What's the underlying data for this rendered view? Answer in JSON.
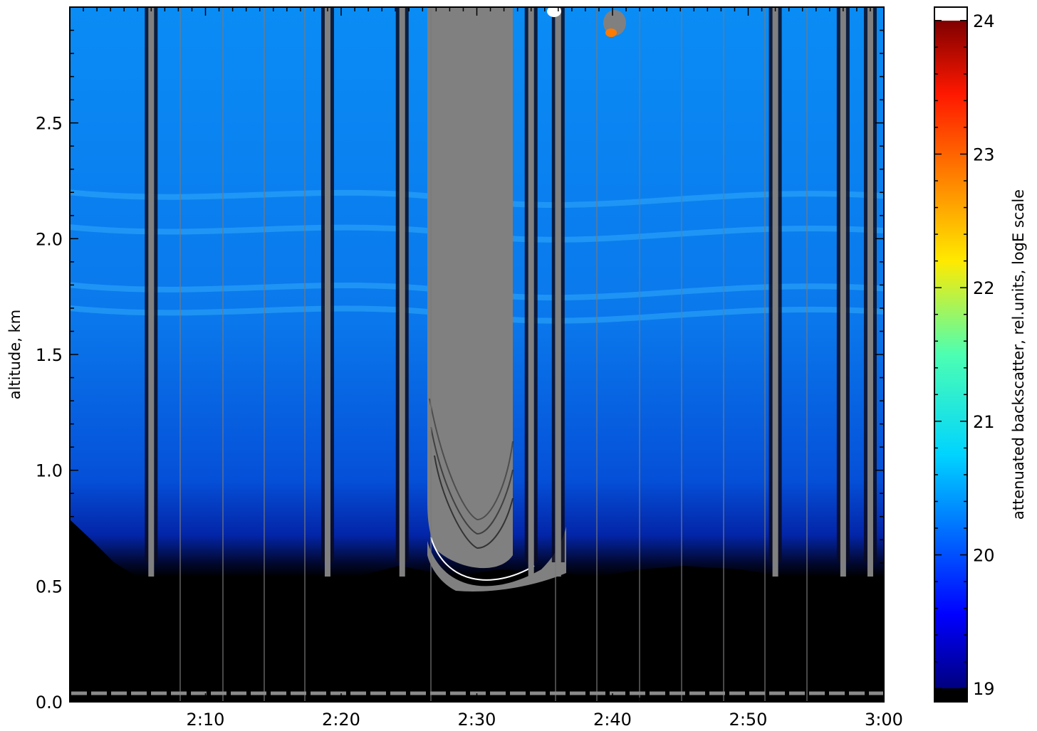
{
  "chart_data": {
    "type": "heatmap",
    "title": "",
    "xlabel": "",
    "ylabel": "altitude, km",
    "x_range": [
      "2:00",
      "3:00"
    ],
    "ylim": [
      0.0,
      3.0
    ],
    "x_ticks": [
      "2:10",
      "2:20",
      "2:30",
      "2:40",
      "2:50",
      "3:00"
    ],
    "y_ticks": [
      "0.0",
      "0.5",
      "1.0",
      "1.5",
      "2.0",
      "2.5"
    ],
    "colorbar": {
      "label": "attenuated backscatter, rel.units, logE scale",
      "range": [
        18.9,
        24.1
      ],
      "ticks": [
        "19",
        "20",
        "21",
        "22",
        "23",
        "24"
      ],
      "colormap": "jet",
      "under_color": "#000000",
      "over_color": "#ffffff"
    },
    "features": {
      "cloud_base_km": [
        0.45,
        0.7
      ],
      "aerosol_layer_bands_km": [
        2.2,
        2.05,
        1.8,
        1.7
      ],
      "signal_saturation_color": "#808080",
      "cloud_contour_color": "#ffffff",
      "opaque_cloud_time_range": [
        "2:26",
        "2:37"
      ]
    },
    "grid": false,
    "colors": {
      "background_below_cloud": "#000000",
      "clear_air": "#0a6cf0",
      "saturated": "#808080"
    }
  }
}
